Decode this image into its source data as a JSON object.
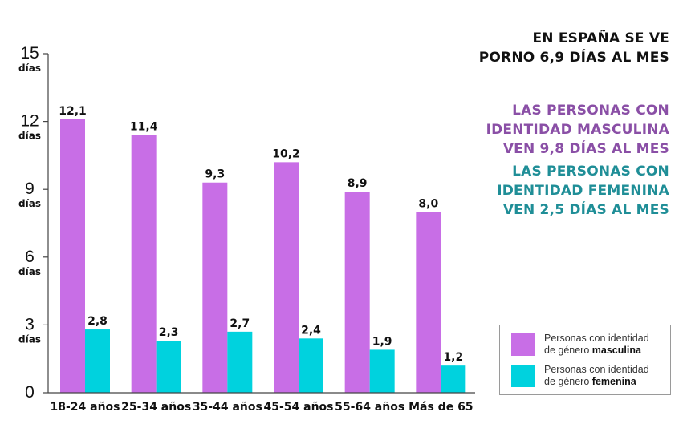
{
  "headline": {
    "line1": "EN ESPAÑA SE VE",
    "line2": "PORNO 6,9 DÍAS AL MES"
  },
  "notes": {
    "masculine": {
      "line1": "LAS PERSONAS CON",
      "line2": "IDENTIDAD MASCULINA",
      "line3": "VEN 9,8 DÍAS AL MES"
    },
    "feminine": {
      "line1": "LAS PERSONAS CON",
      "line2": "IDENTIDAD FEMENINA",
      "line3": "VEN 2,5 DÍAS AL MES"
    }
  },
  "legend": {
    "masculine": {
      "prefix": "Personas con identidad",
      "line2_prefix": "de género ",
      "bold": "masculina"
    },
    "feminine": {
      "prefix": "Personas con identidad",
      "line2_prefix": "de género ",
      "bold": "femenina"
    }
  },
  "colors": {
    "masculine": "#c86ee6",
    "feminine": "#00d2de",
    "masculine_text": "#8a4fa6",
    "feminine_text": "#1f8e97",
    "axis": "#444444"
  },
  "chart_data": {
    "type": "bar",
    "categories": [
      "18-24 años",
      "25-34 años",
      "35-44 años",
      "45-54 años",
      "55-64 años",
      "Más de 65"
    ],
    "series": [
      {
        "key": "masculine",
        "values": [
          12.1,
          11.4,
          9.3,
          10.2,
          8.9,
          8.0
        ],
        "labels": [
          "12,1",
          "11,4",
          "9,3",
          "10,2",
          "8,9",
          "8,0"
        ]
      },
      {
        "key": "feminine",
        "values": [
          2.8,
          2.3,
          2.7,
          2.4,
          1.9,
          1.2
        ],
        "labels": [
          "2,8",
          "2,3",
          "2,7",
          "2,4",
          "1,9",
          "1,2"
        ]
      }
    ],
    "ylim": [
      0,
      15
    ],
    "yticks": [
      {
        "value": 0,
        "label": "0",
        "unit": ""
      },
      {
        "value": 3,
        "label": "3",
        "unit": "días"
      },
      {
        "value": 6,
        "label": "6",
        "unit": "días"
      },
      {
        "value": 9,
        "label": "9",
        "unit": "días"
      },
      {
        "value": 12,
        "label": "12",
        "unit": "días"
      },
      {
        "value": 15,
        "label": "15",
        "unit": "días"
      }
    ],
    "legend_position": "bottom-right",
    "grid": false
  }
}
